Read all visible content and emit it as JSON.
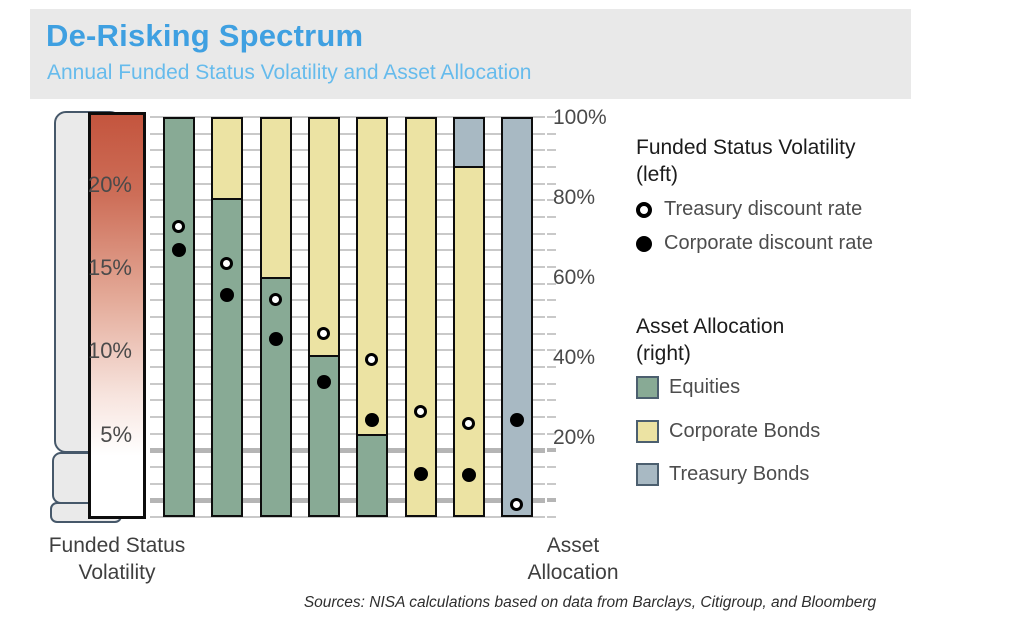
{
  "header": {
    "title": "De-Risking Spectrum",
    "subtitle": "Annual Funded Status Volatility and Asset Allocation"
  },
  "left_axis": {
    "caption_line1": "Funded Status",
    "caption_line2": "Volatility",
    "tick_labels": [
      "20%",
      "15%",
      "10%",
      "5%"
    ]
  },
  "right_axis": {
    "caption_line1": "Asset",
    "caption_line2": "Allocation",
    "tick_labels": [
      "100%",
      "80%",
      "60%",
      "40%",
      "20%"
    ]
  },
  "legend": {
    "volatility": {
      "title": "Funded Status Volatility",
      "subtitle": "(left)",
      "items": [
        {
          "marker": "open-circle",
          "label": "Treasury discount rate"
        },
        {
          "marker": "filled-circle",
          "label": "Corporate discount rate"
        }
      ]
    },
    "allocation": {
      "title": "Asset Allocation",
      "subtitle": "(right)",
      "items": [
        {
          "swatch": "equities",
          "label": "Equities",
          "color": "#88aa95"
        },
        {
          "swatch": "corporate-bonds",
          "label": "Corporate Bonds",
          "color": "#ece3a3"
        },
        {
          "swatch": "treasury-bonds",
          "label": "Treasury Bonds",
          "color": "#a8b9c3"
        }
      ]
    }
  },
  "source": "Sources: NISA calculations based on data from Barclays, Citigroup, and Bloomberg",
  "colors": {
    "equities": "#88aa95",
    "corporate_bonds": "#ece3a3",
    "treasury_bonds": "#a8b9c3",
    "volatility_gradient_top": "#c4553e",
    "volatility_gradient_bottom": "#ffffff",
    "title_blue": "#3fa0e1",
    "subtitle_blue": "#66bbec",
    "header_background": "#e9e9e9"
  },
  "chart_data": {
    "type": "bar",
    "subtype": "stacked-percent-allocation-bars-with-volatility-dot-overlay",
    "title": "De-Risking Spectrum",
    "subtitle": "Annual Funded Status Volatility and Asset Allocation",
    "left_axis": {
      "label": "Funded Status Volatility",
      "unit": "%",
      "range": [
        0,
        24
      ],
      "ticks": [
        20,
        15,
        10,
        5
      ],
      "gridline_step": 1,
      "emphasized_gridlines": [
        4,
        1
      ]
    },
    "right_axis": {
      "label": "Asset Allocation",
      "unit": "%",
      "range": [
        0,
        100
      ],
      "ticks": [
        100,
        80,
        60,
        40,
        20
      ]
    },
    "dot_series": [
      {
        "name": "Treasury discount rate",
        "marker": "open-circle"
      },
      {
        "name": "Corporate discount rate",
        "marker": "filled-circle"
      }
    ],
    "stack_series": [
      "Equities",
      "Corporate Bonds",
      "Treasury Bonds"
    ],
    "bars": [
      {
        "equities": 100,
        "corporate_bonds": 0,
        "treasury_bonds": 0,
        "treasury_rate_vol": 17.4,
        "corporate_rate_vol": 16.0
      },
      {
        "equities": 80,
        "corporate_bonds": 20,
        "treasury_bonds": 0,
        "treasury_rate_vol": 15.2,
        "corporate_rate_vol": 13.3
      },
      {
        "equities": 60,
        "corporate_bonds": 40,
        "treasury_bonds": 0,
        "treasury_rate_vol": 13.0,
        "corporate_rate_vol": 10.7
      },
      {
        "equities": 40,
        "corporate_bonds": 60,
        "treasury_bonds": 0,
        "treasury_rate_vol": 11.0,
        "corporate_rate_vol": 8.1
      },
      {
        "equities": 20,
        "corporate_bonds": 80,
        "treasury_bonds": 0,
        "treasury_rate_vol": 9.4,
        "corporate_rate_vol": 5.8
      },
      {
        "equities": 0,
        "corporate_bonds": 100,
        "treasury_bonds": 0,
        "treasury_rate_vol": 6.3,
        "corporate_rate_vol": 2.6
      },
      {
        "equities": 0,
        "corporate_bonds": 88,
        "treasury_bonds": 12,
        "treasury_rate_vol": 5.6,
        "corporate_rate_vol": 2.5
      },
      {
        "equities": 0,
        "corporate_bonds": 0,
        "treasury_bonds": 100,
        "treasury_rate_vol": 0.7,
        "corporate_rate_vol": 5.8
      }
    ],
    "grid": true,
    "legend_position": "right"
  }
}
